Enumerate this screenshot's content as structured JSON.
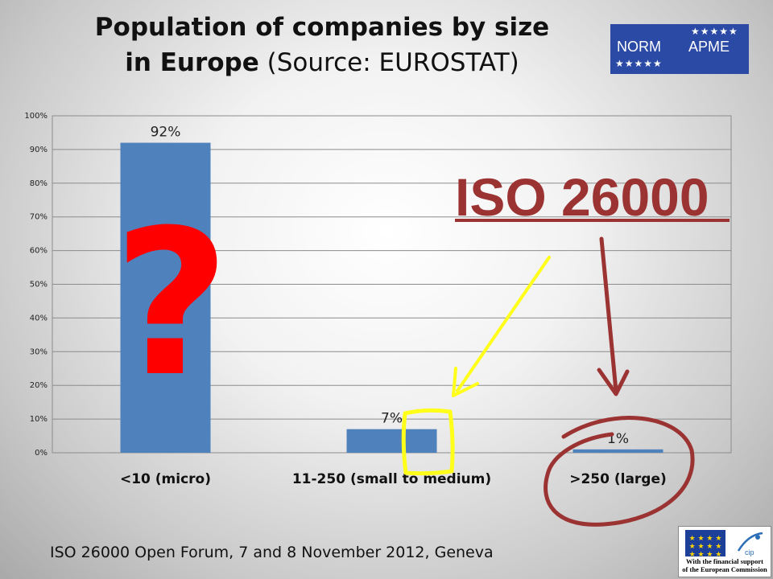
{
  "slide": {
    "title_line1": "Population of companies by size",
    "title_line2_bold": "in Europe",
    "title_line2_rest": "(Source: EUROSTAT)",
    "footer": "ISO 26000 Open Forum, 7 and 8 November 2012, Geneva"
  },
  "logo": {
    "left_text": "NORM",
    "right_text": "APME",
    "stars": "★★★★★"
  },
  "eu_badge": {
    "line1": "With the financial support",
    "line2": "of the European Commission",
    "cip_label": "cip",
    "flag_stars": "★ ★ ★ ★ ★ ★ ★ ★ ★ ★ ★ ★"
  },
  "annotations": {
    "callout_text": "ISO 26000",
    "question_mark": "?"
  },
  "colors": {
    "bar": "#4f81bd",
    "callout": "#9b3333",
    "question": "#ff0000",
    "highlight": "#ffff1a",
    "grid": "#8c8c8c"
  },
  "chart_data": {
    "type": "bar",
    "categories": [
      "<10 (micro)",
      "11-250 (small to medium)",
      ">250 (large)"
    ],
    "values": [
      92,
      7,
      1
    ],
    "data_labels": [
      "92%",
      "7%",
      "1%"
    ],
    "y_ticks": [
      "0%",
      "10%",
      "20%",
      "30%",
      "40%",
      "50%",
      "60%",
      "70%",
      "80%",
      "90%",
      "100%"
    ],
    "ylim": [
      0,
      100
    ],
    "grid": true,
    "legend": "none"
  }
}
